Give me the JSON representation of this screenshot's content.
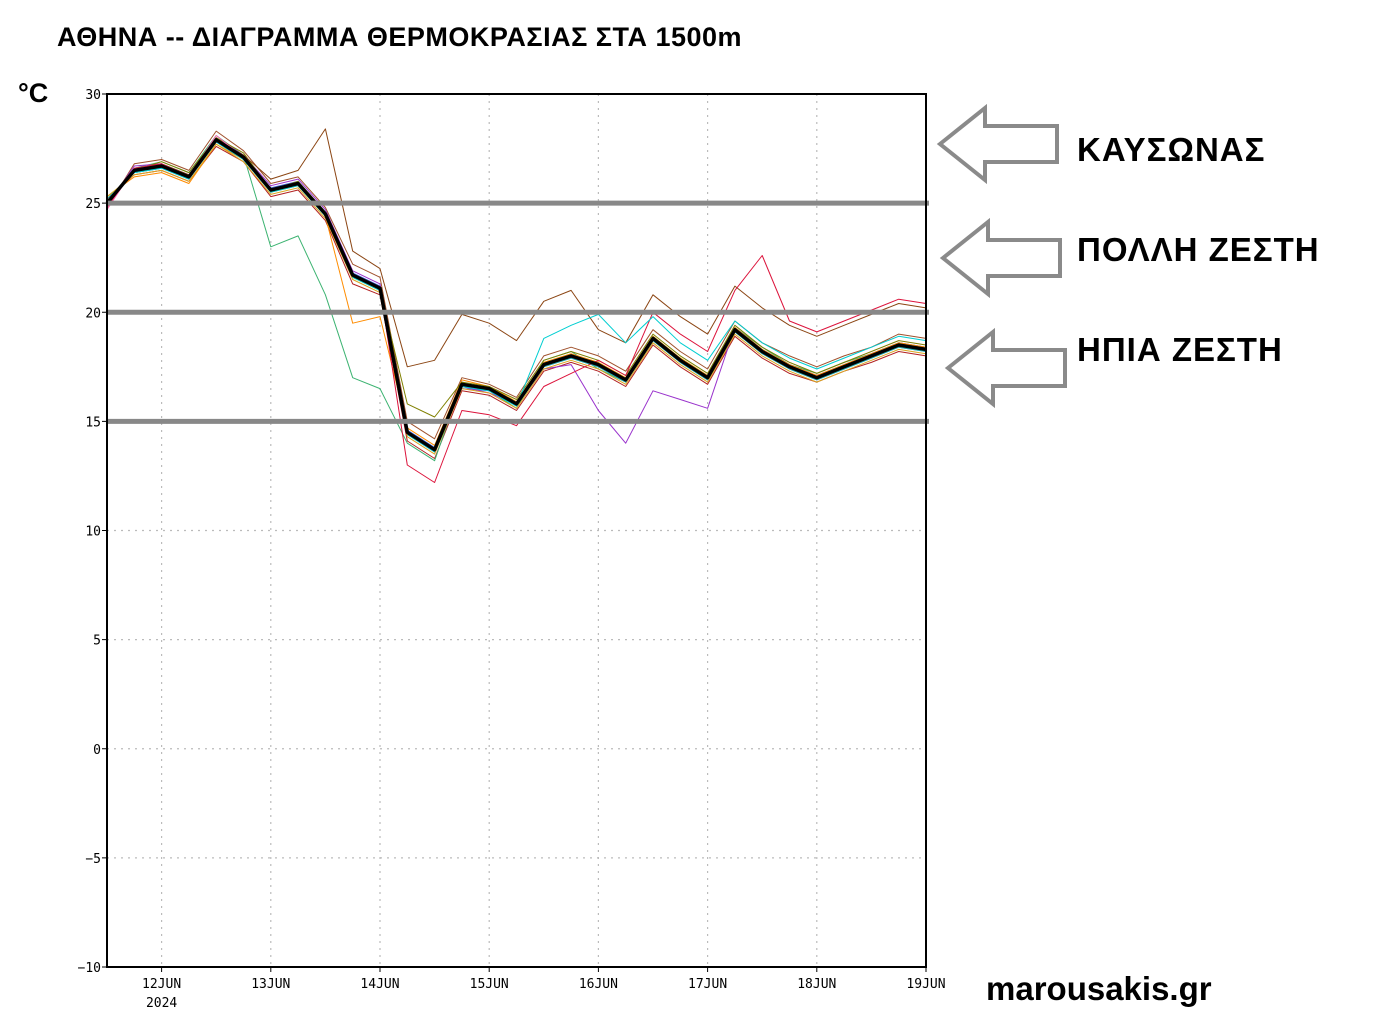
{
  "title": "ΑΘΗΝΑ -- ΔΙΑΓΡΑΜΜΑ ΘΕΡΜΟΚΡΑΣΙΑΣ ΣΤΑ 1500m",
  "unit": "°C",
  "bands": {
    "heatwave": "ΚΑΥΣΩΝΑΣ",
    "very_hot": "ΠΟΛΛΗ ΖΕΣΤΗ",
    "mild": "ΗΠΙΑ ΖΕΣΤΗ"
  },
  "watermark": "marousakis.gr",
  "colors": {
    "mean_line": "#000000",
    "threshold_line": "#888888",
    "arrow_outline": "#8a8a8a",
    "grid": "#bbbbbb"
  },
  "icons": [
    "arrow-left-icon"
  ],
  "chart_data": {
    "type": "line",
    "title": "ΑΘΗΝΑ -- ΔΙΑΓΡΑΜΜΑ ΘΕΡΜΟΚΡΑΣΙΑΣ ΣΤΑ 1500m",
    "ylabel": "°C",
    "xlabel": "",
    "ylim": [
      -10,
      30
    ],
    "xlim": [
      "2024-06-11 12:00",
      "2024-06-19 00:00"
    ],
    "grid": true,
    "x_ticks": [
      "12JUN",
      "13JUN",
      "14JUN",
      "15JUN",
      "16JUN",
      "17JUN",
      "18JUN",
      "19JUN"
    ],
    "x_tick_sublabel": "2024",
    "y_ticks": [
      -10,
      -5,
      0,
      5,
      10,
      15,
      20,
      25,
      30
    ],
    "threshold_lines": [
      25,
      20,
      15
    ],
    "x": [
      "2024-06-11 12:00",
      "2024-06-11 18:00",
      "2024-06-12 00:00",
      "2024-06-12 06:00",
      "2024-06-12 12:00",
      "2024-06-12 18:00",
      "2024-06-13 00:00",
      "2024-06-13 06:00",
      "2024-06-13 12:00",
      "2024-06-13 18:00",
      "2024-06-14 00:00",
      "2024-06-14 06:00",
      "2024-06-14 12:00",
      "2024-06-14 18:00",
      "2024-06-15 00:00",
      "2024-06-15 06:00",
      "2024-06-15 12:00",
      "2024-06-15 18:00",
      "2024-06-16 00:00",
      "2024-06-16 06:00",
      "2024-06-16 12:00",
      "2024-06-16 18:00",
      "2024-06-17 00:00",
      "2024-06-17 06:00",
      "2024-06-17 12:00",
      "2024-06-17 18:00",
      "2024-06-18 00:00",
      "2024-06-18 06:00",
      "2024-06-18 12:00",
      "2024-06-18 18:00",
      "2024-06-19 00:00"
    ],
    "series": [
      {
        "color": "#000000",
        "width": 3.5,
        "values": [
          25.0,
          26.5,
          26.7,
          26.2,
          27.9,
          27.1,
          25.6,
          25.9,
          24.5,
          21.7,
          21.1,
          14.5,
          13.7,
          16.7,
          16.5,
          15.8,
          17.6,
          18.0,
          17.6,
          16.9,
          18.8,
          17.8,
          17.0,
          19.2,
          18.2,
          17.5,
          17.0,
          17.5,
          18.0,
          18.5,
          18.3
        ]
      },
      {
        "color": "#a0522d",
        "width": 1,
        "values": [
          24.8,
          26.8,
          27.0,
          26.5,
          28.3,
          27.4,
          25.9,
          26.2,
          24.8,
          22.2,
          21.6,
          15.0,
          14.2,
          17.0,
          16.7,
          16.1,
          18.0,
          18.4,
          18.0,
          17.3,
          19.2,
          18.2,
          17.4,
          19.6,
          18.6,
          18.0,
          17.5,
          18.0,
          18.4,
          19.0,
          18.8
        ]
      },
      {
        "color": "#b22222",
        "width": 1,
        "values": [
          25.2,
          26.3,
          26.5,
          26.0,
          27.6,
          26.9,
          25.3,
          25.6,
          24.2,
          21.3,
          20.8,
          14.1,
          13.3,
          16.4,
          16.2,
          15.5,
          17.3,
          17.7,
          17.3,
          16.6,
          18.5,
          17.5,
          16.7,
          18.9,
          17.9,
          17.2,
          16.8,
          17.3,
          17.7,
          18.2,
          18.0
        ]
      },
      {
        "color": "#3cb371",
        "width": 1,
        "values": [
          25.0,
          26.6,
          26.9,
          26.4,
          28.1,
          27.2,
          23.0,
          23.5,
          20.8,
          17.0,
          16.5,
          14.0,
          13.2,
          16.8,
          16.4,
          15.6,
          17.8,
          18.2,
          17.4,
          16.8,
          18.9,
          17.9,
          17.1,
          19.3,
          18.4,
          17.6,
          17.2,
          17.7,
          18.1,
          18.6,
          18.4
        ]
      },
      {
        "color": "#4169e1",
        "width": 1,
        "values": [
          25.1,
          26.4,
          26.6,
          26.1,
          27.8,
          27.0,
          25.7,
          26.0,
          24.6,
          21.8,
          21.2,
          14.6,
          13.8,
          16.5,
          16.4,
          15.7,
          17.5,
          17.9,
          17.5,
          16.8,
          18.7,
          17.7,
          16.9,
          19.1,
          18.1,
          17.4,
          16.9,
          17.4,
          17.9,
          18.4,
          18.2
        ]
      },
      {
        "color": "#9932cc",
        "width": 1,
        "values": [
          24.9,
          26.7,
          26.8,
          26.3,
          28.0,
          27.2,
          25.8,
          26.1,
          24.7,
          21.9,
          21.3,
          14.4,
          13.6,
          16.6,
          16.3,
          15.8,
          17.4,
          17.6,
          15.5,
          14.0,
          16.4,
          16.0,
          15.6,
          19.3,
          18.3,
          17.6,
          17.1,
          17.6,
          18.1,
          18.6,
          18.4
        ]
      },
      {
        "color": "#ff8c00",
        "width": 1,
        "values": [
          25.3,
          26.2,
          26.4,
          25.9,
          27.7,
          27.0,
          25.5,
          25.8,
          24.4,
          19.5,
          19.8,
          14.7,
          13.9,
          16.9,
          16.6,
          15.9,
          17.7,
          18.1,
          17.7,
          17.0,
          18.9,
          17.9,
          17.1,
          19.3,
          18.3,
          17.6,
          17.1,
          17.6,
          18.1,
          18.6,
          18.4
        ]
      },
      {
        "color": "#808000",
        "width": 1,
        "values": [
          25.0,
          26.5,
          26.9,
          26.4,
          28.0,
          27.3,
          25.6,
          26.0,
          24.6,
          21.6,
          21.0,
          15.8,
          15.2,
          16.8,
          16.6,
          16.0,
          17.8,
          18.2,
          17.8,
          17.1,
          19.0,
          18.0,
          17.2,
          19.4,
          18.4,
          17.7,
          17.2,
          17.7,
          18.2,
          18.7,
          18.5
        ]
      },
      {
        "color": "#ff69b4",
        "width": 1,
        "values": [
          24.7,
          26.6,
          26.7,
          26.2,
          28.1,
          27.1,
          25.6,
          25.9,
          24.5,
          21.7,
          21.1,
          14.5,
          13.7,
          16.7,
          16.5,
          15.8,
          17.6,
          18.0,
          17.6,
          16.9,
          18.8,
          17.8,
          17.0,
          19.2,
          18.2,
          17.5,
          17.0,
          17.5,
          18.0,
          18.5,
          18.3
        ]
      },
      {
        "color": "#20b2aa",
        "width": 1,
        "values": [
          25.2,
          26.4,
          26.6,
          26.1,
          27.8,
          27.0,
          25.5,
          25.8,
          24.4,
          21.6,
          21.0,
          14.4,
          13.6,
          16.6,
          16.4,
          15.7,
          17.5,
          17.9,
          17.5,
          16.8,
          18.7,
          17.7,
          16.9,
          19.1,
          18.1,
          17.4,
          16.9,
          17.4,
          17.9,
          18.4,
          18.2
        ]
      },
      {
        "color": "#8b4513",
        "width": 1,
        "values": [
          25.1,
          26.5,
          26.8,
          26.3,
          27.9,
          27.2,
          26.1,
          26.5,
          28.4,
          22.8,
          22.0,
          17.5,
          17.8,
          19.9,
          19.5,
          18.7,
          20.5,
          21.0,
          19.2,
          18.6,
          20.8,
          19.8,
          19.0,
          21.2,
          20.2,
          19.4,
          18.9,
          19.4,
          19.9,
          20.4,
          20.2
        ]
      },
      {
        "color": "#dc143c",
        "width": 1,
        "values": [
          24.8,
          26.6,
          26.8,
          26.2,
          27.9,
          27.1,
          25.6,
          25.9,
          24.5,
          21.7,
          21.1,
          13.0,
          12.2,
          15.5,
          15.3,
          14.8,
          16.6,
          17.2,
          17.8,
          17.1,
          20.0,
          19.0,
          18.2,
          21.0,
          22.6,
          19.6,
          19.1,
          19.6,
          20.1,
          20.6,
          20.4
        ]
      },
      {
        "color": "#00ced1",
        "width": 1,
        "values": [
          25.0,
          26.4,
          26.6,
          26.1,
          27.8,
          27.0,
          25.5,
          25.8,
          24.4,
          21.6,
          21.0,
          14.4,
          13.6,
          16.6,
          16.4,
          15.7,
          18.8,
          19.4,
          19.9,
          18.6,
          19.8,
          18.6,
          17.8,
          19.6,
          18.6,
          17.9,
          17.4,
          17.9,
          18.4,
          18.9,
          18.7
        ]
      },
      {
        "color": "#daa520",
        "width": 1,
        "values": [
          25.3,
          26.3,
          26.5,
          26.0,
          27.7,
          26.9,
          25.4,
          25.7,
          24.3,
          21.5,
          20.9,
          14.3,
          13.5,
          16.5,
          16.3,
          15.6,
          17.4,
          17.8,
          17.4,
          16.7,
          18.6,
          17.6,
          16.8,
          19.0,
          18.0,
          17.3,
          16.8,
          17.3,
          17.8,
          18.3,
          18.1
        ]
      }
    ]
  }
}
